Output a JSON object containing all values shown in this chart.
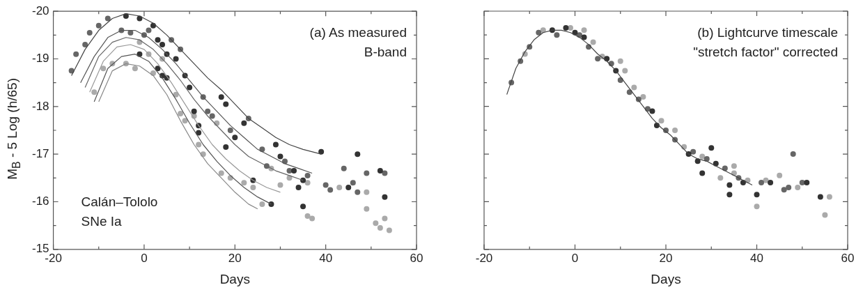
{
  "chart_data": [
    {
      "type": "scatter",
      "xlabel": "Days",
      "ylabel": "M$_{B}$ - 5 Log (h/65)",
      "annotations": [
        "(a) As measured\nB-band",
        "Calán–Tololo\nSNe Ia"
      ],
      "xlim": [
        -20,
        60
      ],
      "xticks": [
        -20,
        {
          "value": -10,
          "label": null
        },
        0,
        {
          "value": 10,
          "label": null
        },
        20,
        {
          "value": 30,
          "label": null
        },
        40,
        {
          "value": 50,
          "label": null
        },
        60
      ],
      "ylim": [
        -15,
        -20
      ],
      "yticks": [
        -20,
        {
          "value": -19.5,
          "label": null
        },
        -19,
        {
          "value": -18.5,
          "label": null
        },
        -18,
        {
          "value": -17.5,
          "label": null
        },
        -17,
        {
          "value": -16.5,
          "label": null
        },
        -16,
        {
          "value": -15.5,
          "label": null
        },
        -15
      ],
      "series": [
        {
          "type": "line",
          "color": "#444444",
          "x": [
            -16,
            -13,
            -10,
            -7,
            -4,
            -1,
            2,
            5,
            8,
            11,
            14,
            17,
            20,
            23,
            26,
            29,
            32,
            35,
            39
          ],
          "values": [
            -18.65,
            -19.2,
            -19.6,
            -19.85,
            -19.95,
            -19.9,
            -19.75,
            -19.5,
            -19.2,
            -18.9,
            -18.6,
            -18.35,
            -18.05,
            -17.75,
            -17.55,
            -17.35,
            -17.2,
            -17.1,
            -17.0
          ]
        },
        {
          "type": "line",
          "color": "#555555",
          "x": [
            -14,
            -11,
            -8,
            -5,
            -2,
            1,
            4,
            7,
            10,
            13,
            16,
            19,
            22,
            25,
            28,
            31,
            34,
            37
          ],
          "values": [
            -18.5,
            -19.05,
            -19.45,
            -19.6,
            -19.6,
            -19.45,
            -19.2,
            -18.9,
            -18.55,
            -18.2,
            -17.9,
            -17.6,
            -17.35,
            -17.1,
            -16.95,
            -16.8,
            -16.7,
            -16.6
          ]
        },
        {
          "type": "line",
          "color": "#666666",
          "x": [
            -13,
            -10,
            -7,
            -4,
            -1,
            2,
            5,
            8,
            11,
            14,
            17,
            20,
            23,
            26,
            29,
            32,
            35
          ],
          "values": [
            -18.4,
            -19.05,
            -19.35,
            -19.45,
            -19.4,
            -19.2,
            -18.9,
            -18.55,
            -18.15,
            -17.8,
            -17.5,
            -17.2,
            -16.95,
            -16.8,
            -16.65,
            -16.55,
            -16.45
          ]
        },
        {
          "type": "line",
          "color": "#999999",
          "x": [
            -12,
            -9,
            -6,
            -3,
            0,
            3,
            6,
            9,
            12,
            15,
            18,
            21,
            24,
            27,
            30
          ],
          "values": [
            -18.3,
            -18.95,
            -19.25,
            -19.3,
            -19.2,
            -18.9,
            -18.5,
            -18.05,
            -17.6,
            -17.2,
            -16.9,
            -16.65,
            -16.45,
            -16.3,
            -16.2
          ]
        },
        {
          "type": "line",
          "color": "#555555",
          "x": [
            -11,
            -8,
            -5,
            -2,
            1,
            4,
            7,
            10,
            13,
            16,
            19,
            22,
            25,
            28
          ],
          "values": [
            -18.1,
            -18.8,
            -19.05,
            -19.1,
            -18.95,
            -18.6,
            -18.15,
            -17.65,
            -17.2,
            -16.85,
            -16.55,
            -16.3,
            -16.1,
            -15.95
          ]
        },
        {
          "type": "line",
          "color": "#888888",
          "x": [
            -10,
            -7,
            -4,
            -1,
            2,
            5,
            8,
            11,
            14,
            17,
            20,
            23,
            25
          ],
          "values": [
            -18.1,
            -18.75,
            -18.9,
            -18.85,
            -18.65,
            -18.25,
            -17.7,
            -17.2,
            -16.8,
            -16.5,
            -16.2,
            -15.95,
            -15.85
          ]
        },
        {
          "type": "scatter",
          "marker": "circle",
          "color": "#333333",
          "x": [
            -4,
            -1,
            2,
            3,
            4,
            5,
            7,
            9,
            10,
            -1,
            3,
            4,
            5,
            11,
            12,
            12,
            18,
            17,
            18,
            20,
            22,
            24,
            28,
            29,
            30,
            33,
            34,
            35,
            35,
            39,
            47,
            52,
            53,
            45
          ],
          "values": [
            -19.9,
            -19.85,
            -19.7,
            -19.4,
            -19.3,
            -19.1,
            -19.0,
            -18.65,
            -18.4,
            -19.1,
            -18.8,
            -18.65,
            -18.6,
            -17.9,
            -17.6,
            -17.45,
            -18.05,
            -18.2,
            -17.15,
            -17.35,
            -17.65,
            -16.45,
            -15.95,
            -17.2,
            -16.95,
            -16.65,
            -16.3,
            -16.45,
            -15.9,
            -17.05,
            -17.0,
            -16.65,
            -16.1,
            -16.3
          ]
        },
        {
          "type": "scatter",
          "marker": "circle",
          "color": "#666666",
          "x": [
            -16,
            -15,
            -13,
            -12,
            -10,
            -8,
            -5,
            -3,
            0,
            1,
            6,
            8,
            13,
            14,
            15,
            19,
            23,
            26,
            27,
            31,
            32,
            36,
            40,
            41,
            44,
            46,
            49,
            53,
            47
          ],
          "values": [
            -18.75,
            -19.1,
            -19.3,
            -19.55,
            -19.7,
            -19.85,
            -19.6,
            -19.55,
            -19.5,
            -19.6,
            -19.4,
            -19.2,
            -18.2,
            -17.9,
            -17.8,
            -17.5,
            -17.75,
            -17.1,
            -16.75,
            -16.85,
            -16.65,
            -16.55,
            -16.35,
            -16.25,
            -16.7,
            -16.4,
            -16.6,
            -16.6,
            -16.2
          ]
        },
        {
          "type": "scatter",
          "marker": "circle",
          "color": "#aaaaaa",
          "x": [
            -11,
            -9,
            -7,
            -4,
            -2,
            -1,
            1,
            2,
            4,
            7,
            8,
            9,
            11,
            12,
            13,
            16,
            17,
            19,
            22,
            24,
            26,
            28,
            30,
            32,
            36,
            37,
            43,
            49,
            49,
            51,
            52,
            53,
            54,
            36
          ],
          "values": [
            -18.3,
            -18.8,
            -18.9,
            -18.9,
            -18.8,
            -19.35,
            -19.1,
            -18.7,
            -19.0,
            -18.25,
            -17.85,
            -17.7,
            -17.8,
            -17.2,
            -17.0,
            -17.65,
            -16.6,
            -16.5,
            -16.4,
            -16.3,
            -15.95,
            -16.7,
            -16.35,
            -16.5,
            -15.7,
            -15.65,
            -16.3,
            -16.2,
            -15.85,
            -15.55,
            -15.45,
            -15.65,
            -15.4,
            -16.4
          ]
        }
      ]
    },
    {
      "type": "scatter",
      "xlabel": "Days",
      "tick_labels": "x",
      "annotations": [
        "(b) Lightcurve timescale\n\"stretch factor\" corrected"
      ],
      "xlim": [
        -20,
        60
      ],
      "xticks": [
        -20,
        {
          "value": -10,
          "label": null
        },
        0,
        {
          "value": 10,
          "label": null
        },
        20,
        {
          "value": 30,
          "label": null
        },
        40,
        {
          "value": 50,
          "label": null
        },
        60
      ],
      "ylim": [
        -15,
        -20
      ],
      "yticks": [
        -20,
        {
          "value": -19.5,
          "label": null
        },
        -19,
        {
          "value": -18.5,
          "label": null
        },
        -18,
        {
          "value": -17.5,
          "label": null
        },
        -17,
        {
          "value": -16.5,
          "label": null
        },
        -16,
        {
          "value": -15.5,
          "label": null
        },
        -15
      ],
      "series": [
        {
          "type": "line",
          "color": "#444444",
          "x": [
            -15,
            -13,
            -11,
            -9,
            -7,
            -5,
            -3,
            -1,
            1,
            3,
            5,
            7,
            9,
            11,
            13,
            15,
            17,
            19,
            21,
            23,
            25,
            27,
            29,
            31,
            33,
            35,
            37,
            39
          ],
          "values": [
            -18.25,
            -18.8,
            -19.15,
            -19.4,
            -19.55,
            -19.6,
            -19.6,
            -19.55,
            -19.45,
            -19.3,
            -19.1,
            -18.95,
            -18.75,
            -18.5,
            -18.25,
            -18.0,
            -17.75,
            -17.55,
            -17.4,
            -17.2,
            -17.0,
            -16.9,
            -16.85,
            -16.75,
            -16.65,
            -16.55,
            -16.45,
            -16.35
          ]
        },
        {
          "type": "scatter",
          "marker": "circle",
          "color": "#333333",
          "x": [
            -5,
            -2,
            0,
            2,
            7,
            9,
            17,
            18,
            25,
            27,
            28,
            30,
            31,
            34,
            34,
            37,
            43,
            51,
            54,
            40
          ],
          "values": [
            -19.6,
            -19.65,
            -19.55,
            -19.45,
            -19.0,
            -18.75,
            -17.9,
            -17.6,
            -17.0,
            -16.85,
            -16.6,
            -17.13,
            -16.8,
            -16.35,
            -16.15,
            -16.4,
            -16.4,
            -16.4,
            -16.1,
            -16.15
          ]
        },
        {
          "type": "scatter",
          "marker": "circle",
          "color": "#666666",
          "x": [
            -14,
            -12,
            -10,
            -8,
            -4,
            1,
            3,
            5,
            8,
            10,
            12,
            14,
            16,
            20,
            22,
            26,
            29,
            33,
            36,
            41,
            46,
            47,
            48,
            50
          ],
          "values": [
            -18.5,
            -18.95,
            -19.25,
            -19.55,
            -19.5,
            -19.5,
            -19.25,
            -19.0,
            -18.9,
            -18.55,
            -18.3,
            -18.15,
            -17.95,
            -17.5,
            -17.3,
            -17.05,
            -16.9,
            -16.7,
            -16.5,
            -16.4,
            -16.25,
            -16.3,
            -17.0,
            -16.4
          ]
        },
        {
          "type": "scatter",
          "marker": "circle",
          "color": "#aaaaaa",
          "x": [
            -11,
            -7,
            -1,
            2,
            4,
            6,
            10,
            11,
            13,
            15,
            19,
            22,
            24,
            28,
            32,
            35,
            35,
            38,
            40,
            45,
            49,
            55,
            56,
            42
          ],
          "values": [
            -19.1,
            -19.6,
            -19.65,
            -19.6,
            -19.35,
            -19.05,
            -18.95,
            -18.75,
            -18.4,
            -18.2,
            -17.7,
            -17.5,
            -17.15,
            -16.95,
            -16.5,
            -16.75,
            -16.6,
            -16.45,
            -15.9,
            -16.55,
            -16.3,
            -15.72,
            -16.1,
            -16.45
          ]
        }
      ]
    }
  ]
}
